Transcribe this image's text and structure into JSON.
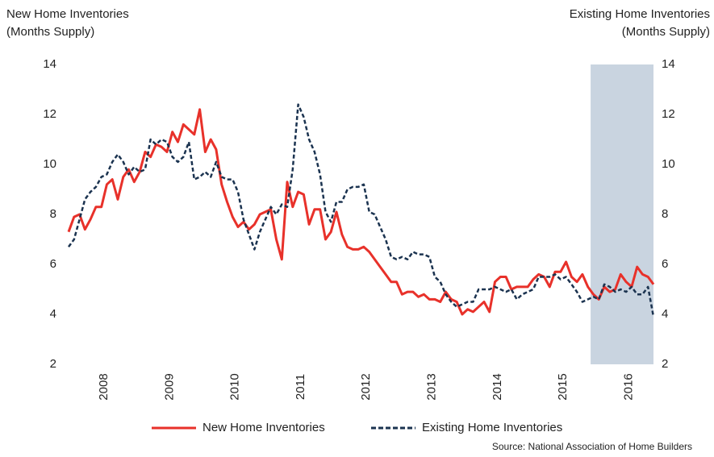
{
  "chart_data": {
    "type": "line",
    "ylabel": [
      "New Home Inventories",
      "(Months Supply)"
    ],
    "y2label": [
      "Existing Home Inventories",
      "(Months Supply)"
    ],
    "source": "Source: National Association of Home Builders",
    "categories": [
      null,
      null,
      null,
      null,
      null,
      null,
      "2008",
      null,
      null,
      null,
      null,
      null,
      null,
      null,
      null,
      null,
      null,
      null,
      "2009",
      null,
      null,
      null,
      null,
      null,
      null,
      null,
      null,
      null,
      null,
      null,
      "2010",
      null,
      null,
      null,
      null,
      null,
      null,
      null,
      null,
      null,
      null,
      null,
      "2011",
      null,
      null,
      null,
      null,
      null,
      null,
      null,
      null,
      null,
      null,
      null,
      "2012",
      null,
      null,
      null,
      null,
      null,
      null,
      null,
      null,
      null,
      null,
      null,
      "2013",
      null,
      null,
      null,
      null,
      null,
      null,
      null,
      null,
      null,
      null,
      null,
      "2014",
      null,
      null,
      null,
      null,
      null,
      null,
      null,
      null,
      null,
      null,
      null,
      "2015",
      null,
      null,
      null,
      null,
      null,
      null,
      null,
      null,
      null,
      null,
      null,
      "2016",
      null,
      null,
      null,
      null,
      null
    ],
    "shaded_range": [
      96,
      107
    ],
    "shade_color": "#c9d4e0",
    "series": [
      {
        "name": "New Home Inventories",
        "color": "#e8312a",
        "dashed": false,
        "values": [
          7.3,
          7.9,
          8.0,
          7.4,
          7.8,
          8.3,
          8.3,
          9.2,
          9.4,
          8.6,
          9.5,
          9.8,
          9.3,
          9.7,
          10.5,
          10.3,
          10.8,
          10.7,
          10.5,
          11.3,
          10.9,
          11.6,
          11.4,
          11.2,
          12.2,
          10.5,
          11.0,
          10.6,
          9.2,
          8.5,
          7.9,
          7.5,
          7.7,
          7.4,
          7.6,
          8.0,
          8.1,
          8.2,
          7.0,
          6.2,
          9.3,
          8.3,
          8.9,
          8.8,
          7.6,
          8.2,
          8.2,
          7.0,
          7.3,
          8.1,
          7.2,
          6.7,
          6.6,
          6.6,
          6.7,
          6.5,
          6.2,
          5.9,
          5.6,
          5.3,
          5.3,
          4.8,
          4.9,
          4.9,
          4.7,
          4.8,
          4.6,
          4.6,
          4.5,
          4.9,
          4.6,
          4.5,
          4.0,
          4.2,
          4.1,
          4.3,
          4.5,
          4.1,
          5.3,
          5.5,
          5.5,
          5.0,
          5.1,
          5.1,
          5.1,
          5.4,
          5.6,
          5.5,
          5.1,
          5.7,
          5.7,
          6.1,
          5.5,
          5.3,
          5.6,
          5.1,
          4.8,
          4.6,
          5.1,
          4.9,
          5.0,
          5.6,
          5.3,
          5.1,
          5.9,
          5.6,
          5.5,
          5.2
        ]
      },
      {
        "name": "Existing Home Inventories",
        "color": "#1b3350",
        "dashed": true,
        "axis": "y2",
        "values": [
          6.7,
          7.0,
          7.8,
          8.6,
          8.9,
          9.1,
          9.5,
          9.6,
          10.1,
          10.4,
          10.1,
          9.6,
          9.9,
          9.7,
          9.8,
          11.0,
          10.8,
          11.0,
          10.9,
          10.3,
          10.1,
          10.3,
          10.9,
          9.4,
          9.5,
          9.7,
          9.5,
          10.1,
          9.5,
          9.4,
          9.4,
          8.9,
          7.8,
          7.2,
          6.6,
          7.3,
          7.8,
          8.3,
          8.0,
          8.4,
          8.3,
          9.8,
          12.4,
          11.9,
          11.0,
          10.5,
          9.6,
          8.1,
          7.7,
          8.5,
          8.5,
          9.0,
          9.1,
          9.1,
          9.2,
          8.1,
          8.0,
          7.5,
          7.0,
          6.3,
          6.2,
          6.3,
          6.2,
          6.5,
          6.4,
          6.4,
          6.3,
          5.5,
          5.3,
          4.8,
          4.5,
          4.3,
          4.4,
          4.5,
          4.5,
          5.0,
          5.0,
          5.0,
          5.1,
          5.0,
          4.9,
          5.0,
          4.6,
          4.8,
          4.9,
          5.0,
          5.5,
          5.5,
          5.5,
          5.6,
          5.4,
          5.5,
          5.2,
          4.9,
          4.5,
          4.6,
          4.7,
          4.6,
          5.2,
          5.1,
          4.9,
          5.0,
          4.9,
          5.1,
          4.8,
          4.8,
          5.1,
          3.9
        ]
      }
    ],
    "ylim": [
      2,
      14
    ],
    "yticks": [
      2,
      4,
      6,
      8,
      10,
      12,
      14
    ],
    "y2lim": [
      2,
      14
    ],
    "y2ticks": [
      2,
      4,
      6,
      8,
      10,
      12,
      14
    ],
    "grid": false
  }
}
